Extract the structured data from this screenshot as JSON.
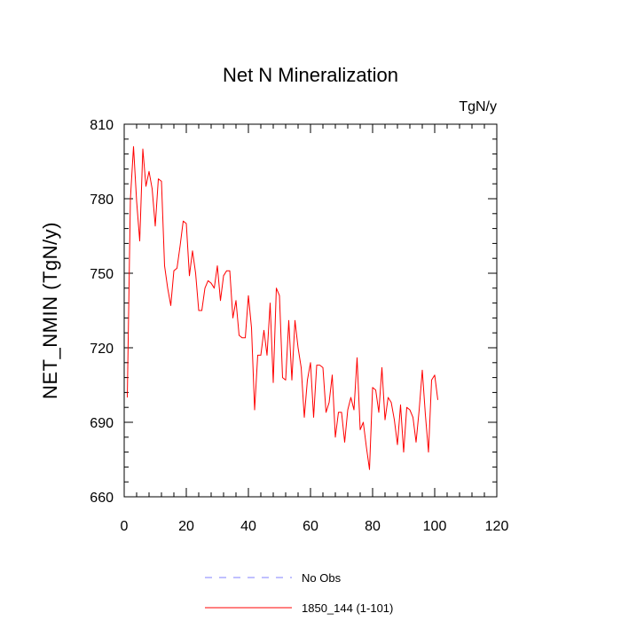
{
  "chart_data": {
    "type": "line",
    "title": "Net N Mineralization",
    "units_label": "TgN/y",
    "xlabel": "",
    "ylabel": "NET_NMIN  (TgN/y)",
    "xlim": [
      0,
      120
    ],
    "ylim": [
      660,
      810
    ],
    "xticks": [
      0,
      20,
      40,
      60,
      80,
      100,
      120
    ],
    "yticks": [
      660,
      690,
      720,
      750,
      780,
      810
    ],
    "legend": [
      {
        "name": "No Obs",
        "style": "dashed",
        "color": "#8080ff"
      },
      {
        "name": "1850_144 (1-101)",
        "style": "solid",
        "color": "#ff0000"
      }
    ],
    "series": [
      {
        "name": "1850_144 (1-101)",
        "color": "#ff0000",
        "x_start": 1,
        "values": [
          700,
          780,
          801,
          779,
          763,
          800,
          785,
          791,
          784,
          769,
          788,
          787,
          753,
          744,
          737,
          751,
          752,
          761,
          771,
          770,
          749,
          759,
          750,
          735,
          735,
          744,
          747,
          746,
          744,
          753,
          739,
          749,
          751,
          751,
          732,
          739,
          725,
          724,
          724,
          741,
          728,
          695,
          717,
          717,
          727,
          717,
          738,
          706,
          744,
          741,
          708,
          707,
          731,
          707,
          731,
          720,
          712,
          692,
          707,
          714,
          692,
          713,
          713,
          712,
          694,
          698,
          709,
          684,
          694,
          694,
          682,
          695,
          700,
          695,
          716,
          687,
          690,
          680,
          671,
          704,
          703,
          694,
          712,
          691,
          700,
          698,
          691,
          681,
          697,
          678,
          696,
          695,
          692,
          682,
          695,
          711,
          693,
          678,
          707,
          709,
          699
        ]
      }
    ]
  }
}
